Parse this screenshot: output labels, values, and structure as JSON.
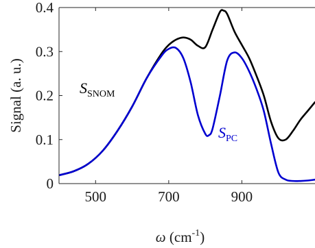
{
  "chart_data": {
    "type": "line",
    "title": "",
    "xlabel": {
      "symbol": "ω",
      "unit": " (cm",
      "exp": "-1",
      "close": ")"
    },
    "ylabel": "Signal (a. u.)",
    "xlim": [
      400,
      1100
    ],
    "ylim": [
      0,
      0.4
    ],
    "xticks": [
      500,
      700,
      900
    ],
    "yticks": [
      0,
      0.1,
      0.2,
      0.3,
      0.4
    ],
    "grid": false,
    "legend": "none",
    "series": [
      {
        "name": {
          "main": "S",
          "sub": "SNOM"
        },
        "color": "#000000",
        "x": [
          400,
          440,
          480,
          520,
          560,
          600,
          640,
          680,
          700,
          720,
          740,
          760,
          780,
          800,
          820,
          840,
          850,
          860,
          880,
          900,
          920,
          940,
          960,
          980,
          1000,
          1020,
          1040,
          1060,
          1080,
          1100
        ],
        "y": [
          0.019,
          0.028,
          0.045,
          0.075,
          0.12,
          0.175,
          0.24,
          0.295,
          0.315,
          0.327,
          0.332,
          0.327,
          0.313,
          0.31,
          0.35,
          0.39,
          0.393,
          0.385,
          0.345,
          0.315,
          0.285,
          0.245,
          0.2,
          0.14,
          0.103,
          0.1,
          0.12,
          0.145,
          0.165,
          0.185
        ]
      },
      {
        "name": {
          "main": "S",
          "sub": "PC"
        },
        "color": "#0000d0",
        "x": [
          400,
          440,
          480,
          520,
          560,
          600,
          640,
          680,
          700,
          720,
          740,
          760,
          780,
          800,
          810,
          820,
          840,
          860,
          880,
          900,
          920,
          940,
          960,
          980,
          1000,
          1020,
          1040,
          1060,
          1080,
          1100
        ],
        "y": [
          0.019,
          0.028,
          0.045,
          0.075,
          0.12,
          0.175,
          0.24,
          0.29,
          0.306,
          0.308,
          0.285,
          0.23,
          0.155,
          0.113,
          0.11,
          0.125,
          0.2,
          0.28,
          0.298,
          0.285,
          0.255,
          0.215,
          0.165,
          0.09,
          0.025,
          0.009,
          0.006,
          0.006,
          0.007,
          0.009
        ]
      }
    ]
  }
}
